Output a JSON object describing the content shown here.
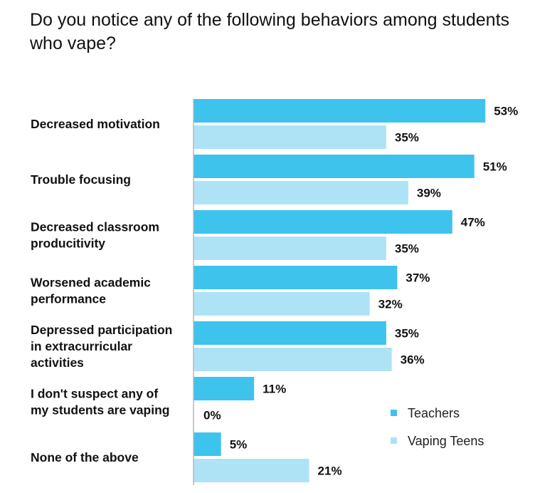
{
  "title": "Do you notice any of the following behaviors among students who vape?",
  "colors": {
    "teachers": "#3ec3ec",
    "vaping_teens": "#aee3f6",
    "axis": "#b8b8b8",
    "text": "#111111"
  },
  "chart_data": {
    "type": "bar",
    "orientation": "horizontal",
    "title": "Do you notice any of the following behaviors among students who vape?",
    "xlabel": "",
    "ylabel": "",
    "value_suffix": "%",
    "xlim": [
      0,
      60
    ],
    "grid": false,
    "legend_position": "right",
    "categories": [
      [
        "Decreased motivation"
      ],
      [
        "Trouble focusing"
      ],
      [
        "Decreased classroom",
        "producitivity"
      ],
      [
        "Worsened academic",
        "performance"
      ],
      [
        "Depressed participation",
        "in extracurricular",
        "activities"
      ],
      [
        "I don't suspect any of",
        "my students are vaping"
      ],
      [
        "None of the above"
      ]
    ],
    "series": [
      {
        "name": "Teachers",
        "values": [
          53,
          51,
          47,
          37,
          35,
          11,
          5
        ]
      },
      {
        "name": "Vaping Teens",
        "values": [
          35,
          39,
          35,
          32,
          36,
          0,
          21
        ]
      }
    ]
  }
}
